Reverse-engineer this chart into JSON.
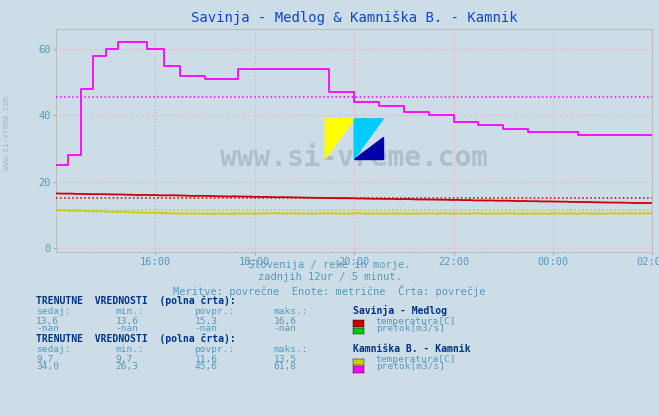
{
  "title": "Savinja - Medlog & Kamniška B. - Kamnik",
  "title_color": "#1144cc",
  "bg_color": "#ccdde8",
  "plot_bg_color": "#ccdde8",
  "grid_color": "#ffaaaa",
  "xlabel_text1": "Slovenija / reke in morje.",
  "xlabel_text2": "zadnjih 12ur / 5 minut.",
  "xlabel_text3": "Meritve: povrečne  Enote: metrične  Črta: povrečje",
  "xlabel_color": "#5599bb",
  "watermark": "www.si-vreme.com",
  "watermark_color": "#aabbcc",
  "xtick_labels": [
    "16:00",
    "18:00",
    "20:00",
    "22:00",
    "00:00",
    "02:00"
  ],
  "ytick_values": [
    0,
    20,
    40,
    60
  ],
  "ylim": [
    -1,
    66
  ],
  "line_colors": {
    "savinja_temp": "#cc0000",
    "savinja_pretok": "#00cc00",
    "kamnik_temp": "#cccc00",
    "kamnik_pretok": "#ff00ff"
  },
  "savinja_temp_avg": 15.3,
  "kamnik_temp_avg": 11.6,
  "kamnik_pretok_avg": 45.6,
  "table_color": "#5599bb",
  "table_bold_color": "#003388",
  "sidebar_text": "www.si-vreme.com",
  "sidebar_color": "#99bbcc"
}
